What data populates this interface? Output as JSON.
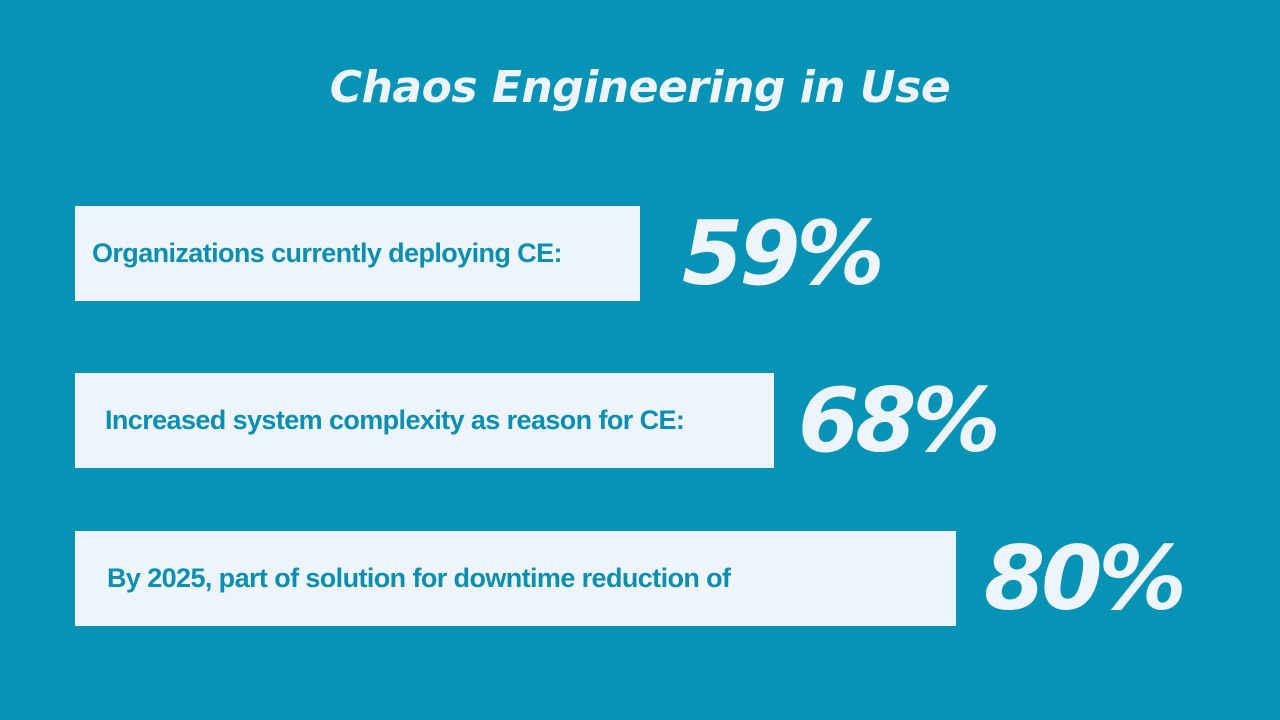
{
  "title": "Chaos Engineering in Use",
  "stats": [
    {
      "label": "Organizations currently deploying CE:",
      "value": "59%"
    },
    {
      "label": "Increased system complexity as reason for CE:",
      "value": "68%"
    },
    {
      "label": "By 2025, part of solution for downtime reduction of",
      "value": "80%"
    }
  ],
  "colors": {
    "background": "#0693b5",
    "panel": "#eef4fb",
    "label_text": "#0a8fb0",
    "value_text": "#eef4fb"
  }
}
